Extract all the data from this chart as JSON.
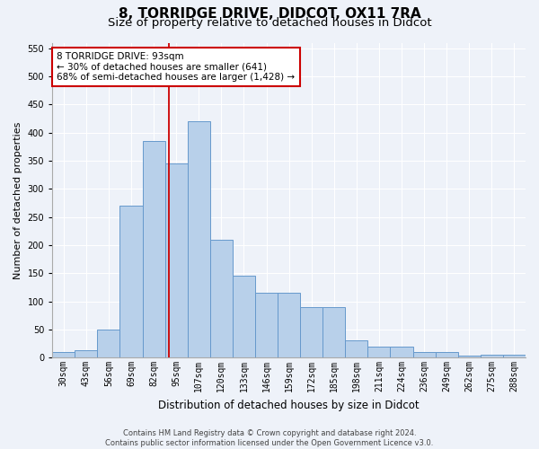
{
  "title1": "8, TORRIDGE DRIVE, DIDCOT, OX11 7RA",
  "title2": "Size of property relative to detached houses in Didcot",
  "xlabel": "Distribution of detached houses by size in Didcot",
  "ylabel": "Number of detached properties",
  "categories": [
    "30sqm",
    "43sqm",
    "56sqm",
    "69sqm",
    "82sqm",
    "95sqm",
    "107sqm",
    "120sqm",
    "133sqm",
    "146sqm",
    "159sqm",
    "172sqm",
    "185sqm",
    "198sqm",
    "211sqm",
    "224sqm",
    "236sqm",
    "249sqm",
    "262sqm",
    "275sqm",
    "288sqm"
  ],
  "values": [
    10,
    13,
    50,
    270,
    385,
    345,
    420,
    210,
    145,
    115,
    115,
    90,
    90,
    30,
    20,
    20,
    10,
    10,
    3,
    5,
    5
  ],
  "bar_color": "#b8d0ea",
  "bar_edge_color": "#6699cc",
  "vline_color": "#cc0000",
  "annotation_text": "8 TORRIDGE DRIVE: 93sqm\n← 30% of detached houses are smaller (641)\n68% of semi-detached houses are larger (1,428) →",
  "annotation_box_color": "#ffffff",
  "annotation_box_edge": "#cc0000",
  "ylim": [
    0,
    560
  ],
  "yticks": [
    0,
    50,
    100,
    150,
    200,
    250,
    300,
    350,
    400,
    450,
    500,
    550
  ],
  "footer_line1": "Contains HM Land Registry data © Crown copyright and database right 2024.",
  "footer_line2": "Contains public sector information licensed under the Open Government Licence v3.0.",
  "bg_color": "#eef2f9",
  "title1_fontsize": 11,
  "title2_fontsize": 9.5,
  "ylabel_fontsize": 8,
  "xlabel_fontsize": 8.5,
  "tick_fontsize": 7,
  "annot_fontsize": 7.5,
  "footer_fontsize": 6
}
